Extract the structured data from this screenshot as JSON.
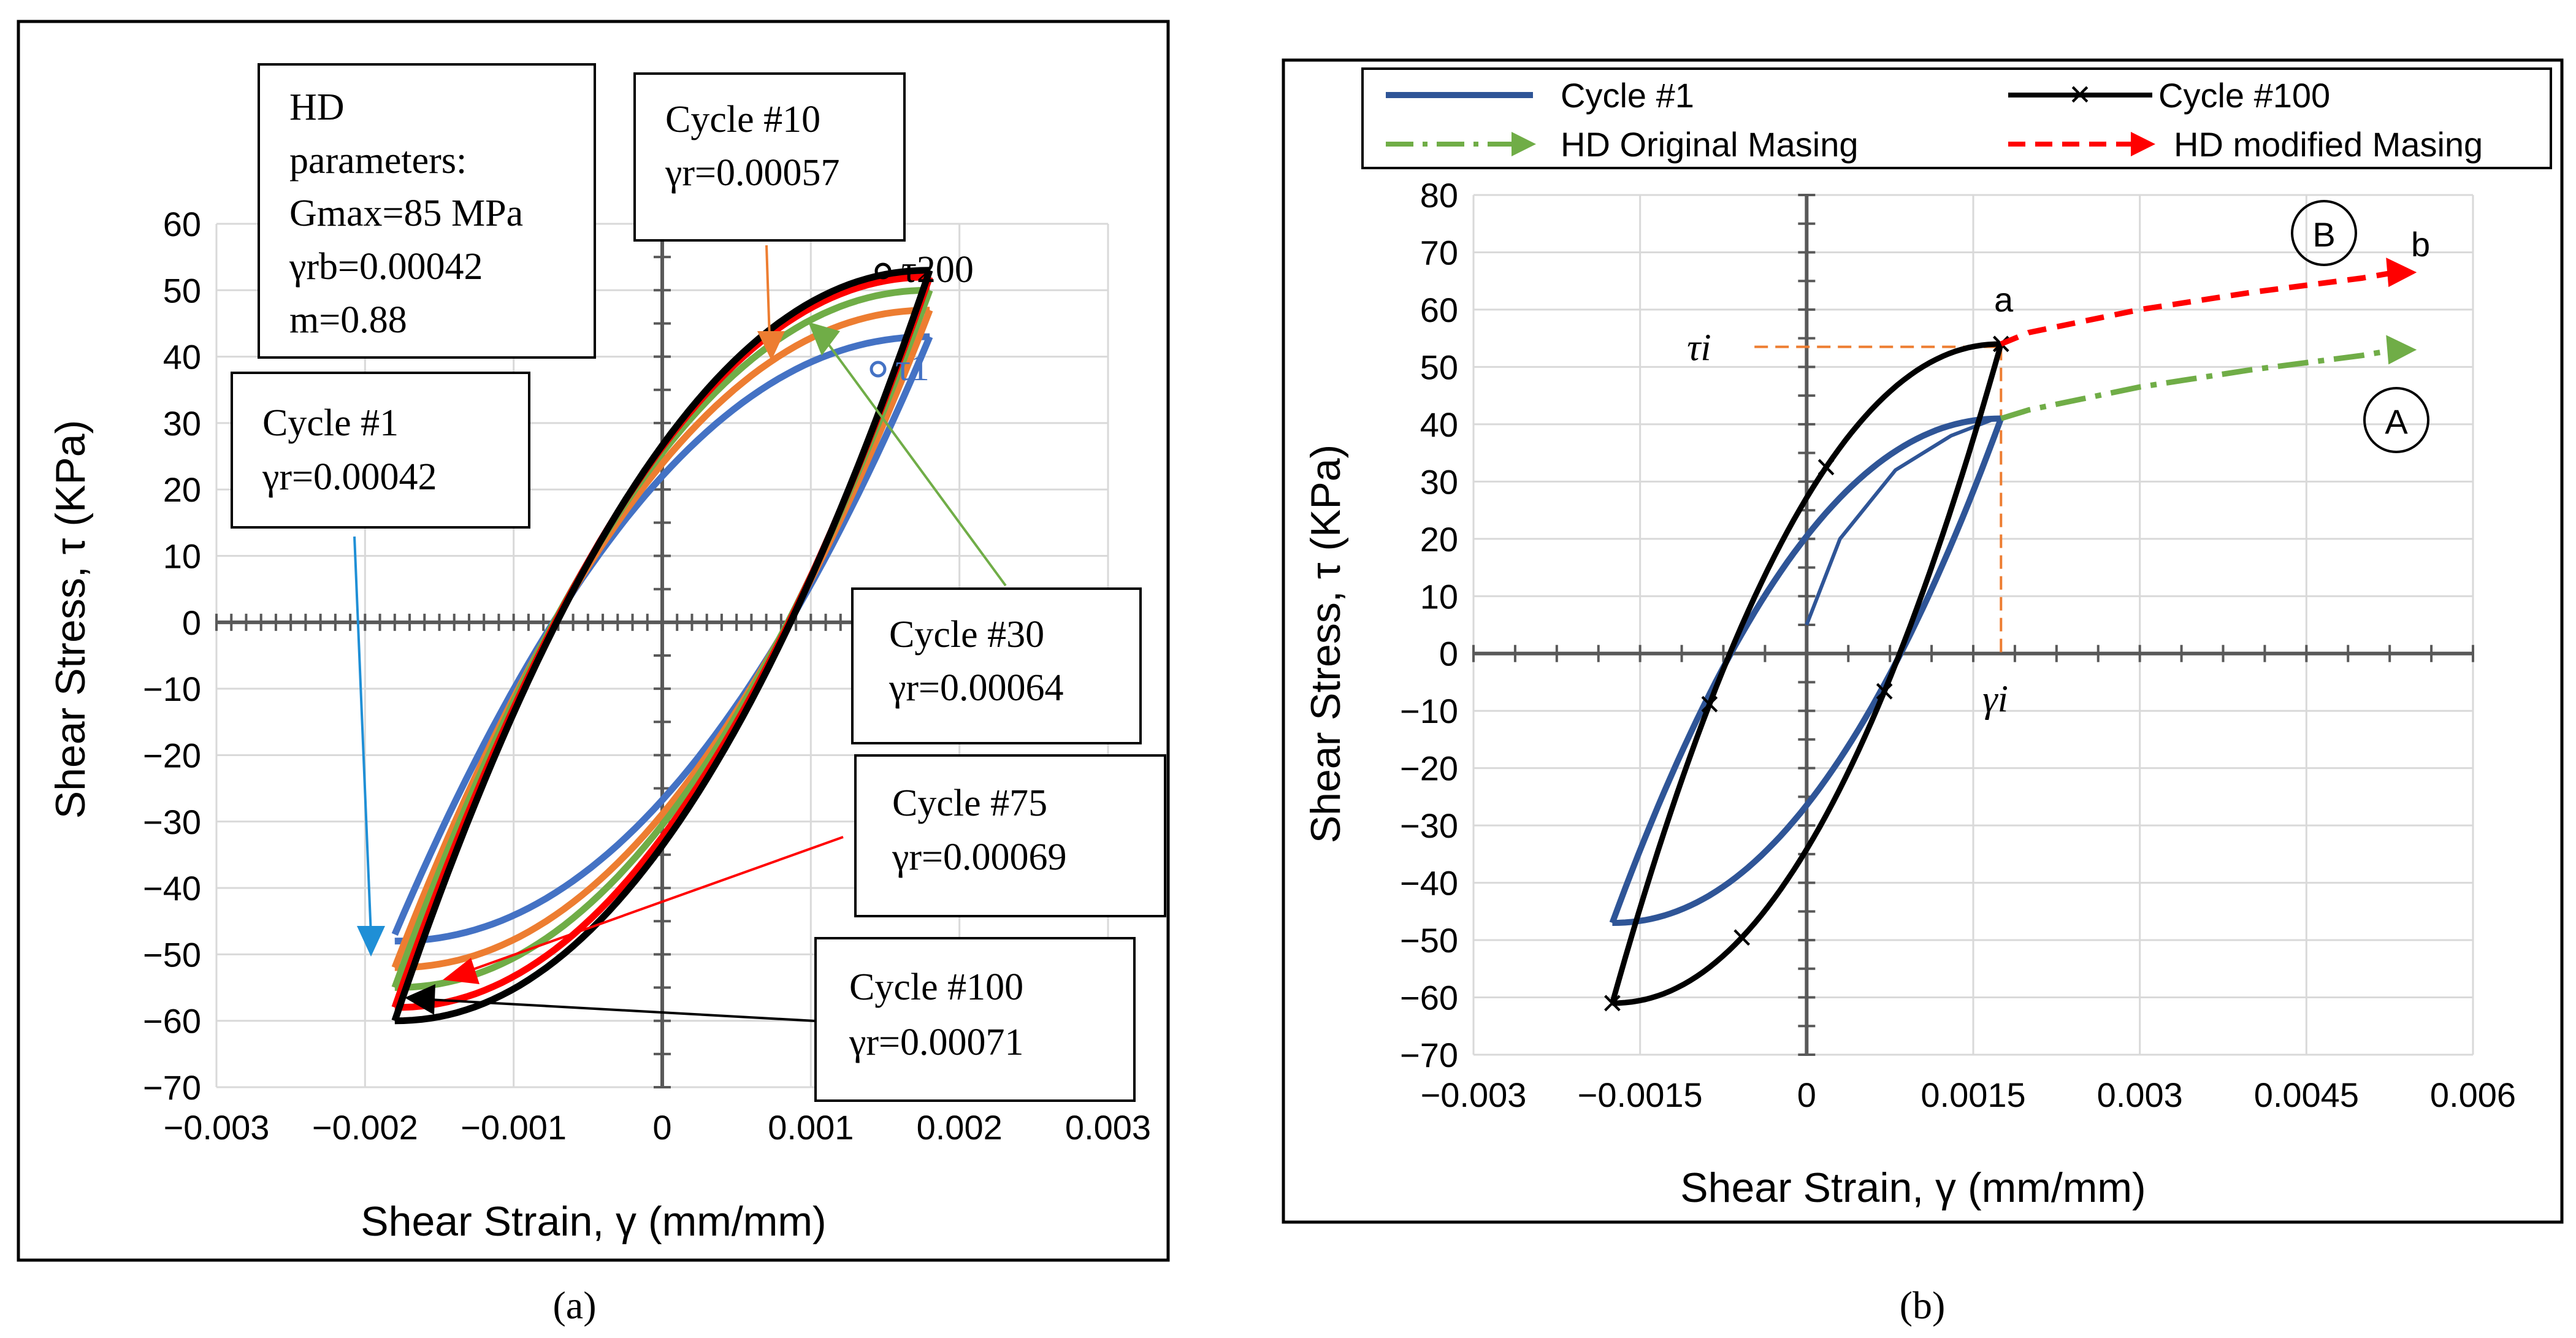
{
  "chart_data": [
    {
      "panel": "a",
      "type": "line",
      "caption": "(a)",
      "xlabel": "Shear Strain, γ (mm/mm)",
      "ylabel": "Shear Stress, τ (KPa)",
      "xlim": [
        -0.003,
        0.003
      ],
      "ylim": [
        -70,
        60
      ],
      "xticks": [
        "−0.003",
        "−0.002",
        "−0.001",
        "0",
        "0.001",
        "0.002",
        "0.003"
      ],
      "yticks": [
        "60",
        "50",
        "40",
        "30",
        "20",
        "10",
        "0",
        "−10",
        "−20",
        "−30",
        "−40",
        "−50",
        "−60",
        "−70"
      ],
      "series": [
        {
          "name": "Cycle #1",
          "color": "#4472c4",
          "gamma_max": 0.0018,
          "upper_start": -47,
          "upper_end": 43,
          "lower_start": -48,
          "lower_end": 43
        },
        {
          "name": "Cycle #10",
          "color": "#ed7d31",
          "gamma_max": 0.0018,
          "upper_start": -52,
          "upper_end": 47,
          "lower_start": -52,
          "lower_end": 47
        },
        {
          "name": "Cycle #30",
          "color": "#70ad47",
          "gamma_max": 0.0018,
          "upper_start": -55,
          "upper_end": 50,
          "lower_start": -55,
          "lower_end": 50
        },
        {
          "name": "Cycle #75",
          "color": "#ff0000",
          "gamma_max": 0.0018,
          "upper_start": -58,
          "upper_end": 52,
          "lower_start": -58,
          "lower_end": 52
        },
        {
          "name": "Cycle #100",
          "color": "#000000",
          "gamma_max": 0.0018,
          "upper_start": -60,
          "upper_end": 53,
          "lower_start": -60,
          "lower_end": 53
        }
      ],
      "annotations": {
        "hd_box": [
          "HD",
          "parameters:",
          "Gmax=85 MPa",
          "γrb=0.00042",
          "m=0.88"
        ],
        "cycle1": [
          "Cycle #1",
          "γr=0.00042"
        ],
        "cycle10": [
          "Cycle #10",
          "γr=0.00057"
        ],
        "cycle30": [
          "Cycle #30",
          "γr=0.00064"
        ],
        "cycle75": [
          "Cycle #75",
          "γr=0.00069"
        ],
        "cycle100": [
          "Cycle #100",
          "γr=0.00071"
        ],
        "tau200": "τ200",
        "tau1": "τ1"
      }
    },
    {
      "panel": "b",
      "type": "line",
      "caption": "(b)",
      "xlabel": "Shear Strain, γ (mm/mm)",
      "ylabel": "Shear Stress, τ (KPa)",
      "xlim": [
        -0.003,
        0.006
      ],
      "ylim": [
        -70,
        80
      ],
      "xticks": [
        "−0.003",
        "−0.0015",
        "0",
        "0.0015",
        "0.003",
        "0.0045",
        "0.006"
      ],
      "yticks": [
        "80",
        "70",
        "60",
        "50",
        "40",
        "30",
        "20",
        "10",
        "0",
        "−10",
        "−20",
        "−30",
        "−40",
        "−50",
        "−60",
        "−70"
      ],
      "legend": [
        "Cycle #1",
        "Cycle #100",
        "HD Original Masing",
        "HD modified Masing"
      ],
      "series": [
        {
          "name": "Cycle #1",
          "color": "#2f5597",
          "backbone": [
            [
              0,
              5
            ],
            [
              0.0003,
              20
            ],
            [
              0.0008,
              32
            ],
            [
              0.0013,
              38
            ],
            [
              0.0017,
              41
            ]
          ],
          "gamma_max": 0.00175,
          "upper_start": -47,
          "upper_end": 41,
          "lower_start": -47,
          "lower_end": 41
        },
        {
          "name": "Cycle #100",
          "color": "#000000",
          "gamma_max": 0.00175,
          "upper_start": -61,
          "upper_end": 54,
          "lower_start": -61,
          "lower_end": 54
        },
        {
          "name": "HD Original Masing",
          "color": "#70ad47",
          "x": [
            0.00175,
            0.002,
            0.003,
            0.004,
            0.005,
            0.0053
          ],
          "y": [
            41,
            42.5,
            46.5,
            49.5,
            52,
            53
          ]
        },
        {
          "name": "HD modified Masing",
          "color": "#ff0000",
          "x": [
            0.00175,
            0.002,
            0.003,
            0.004,
            0.005,
            0.0053
          ],
          "y": [
            54,
            56,
            60,
            63,
            65.5,
            66.5
          ]
        }
      ],
      "annotations": {
        "a": "a",
        "b": "b",
        "A": "A",
        "B": "B",
        "tau_i": "τi",
        "gamma_i": "γi",
        "gamma_i_value": 0.00175,
        "tau_i_value": 53.5
      }
    }
  ]
}
